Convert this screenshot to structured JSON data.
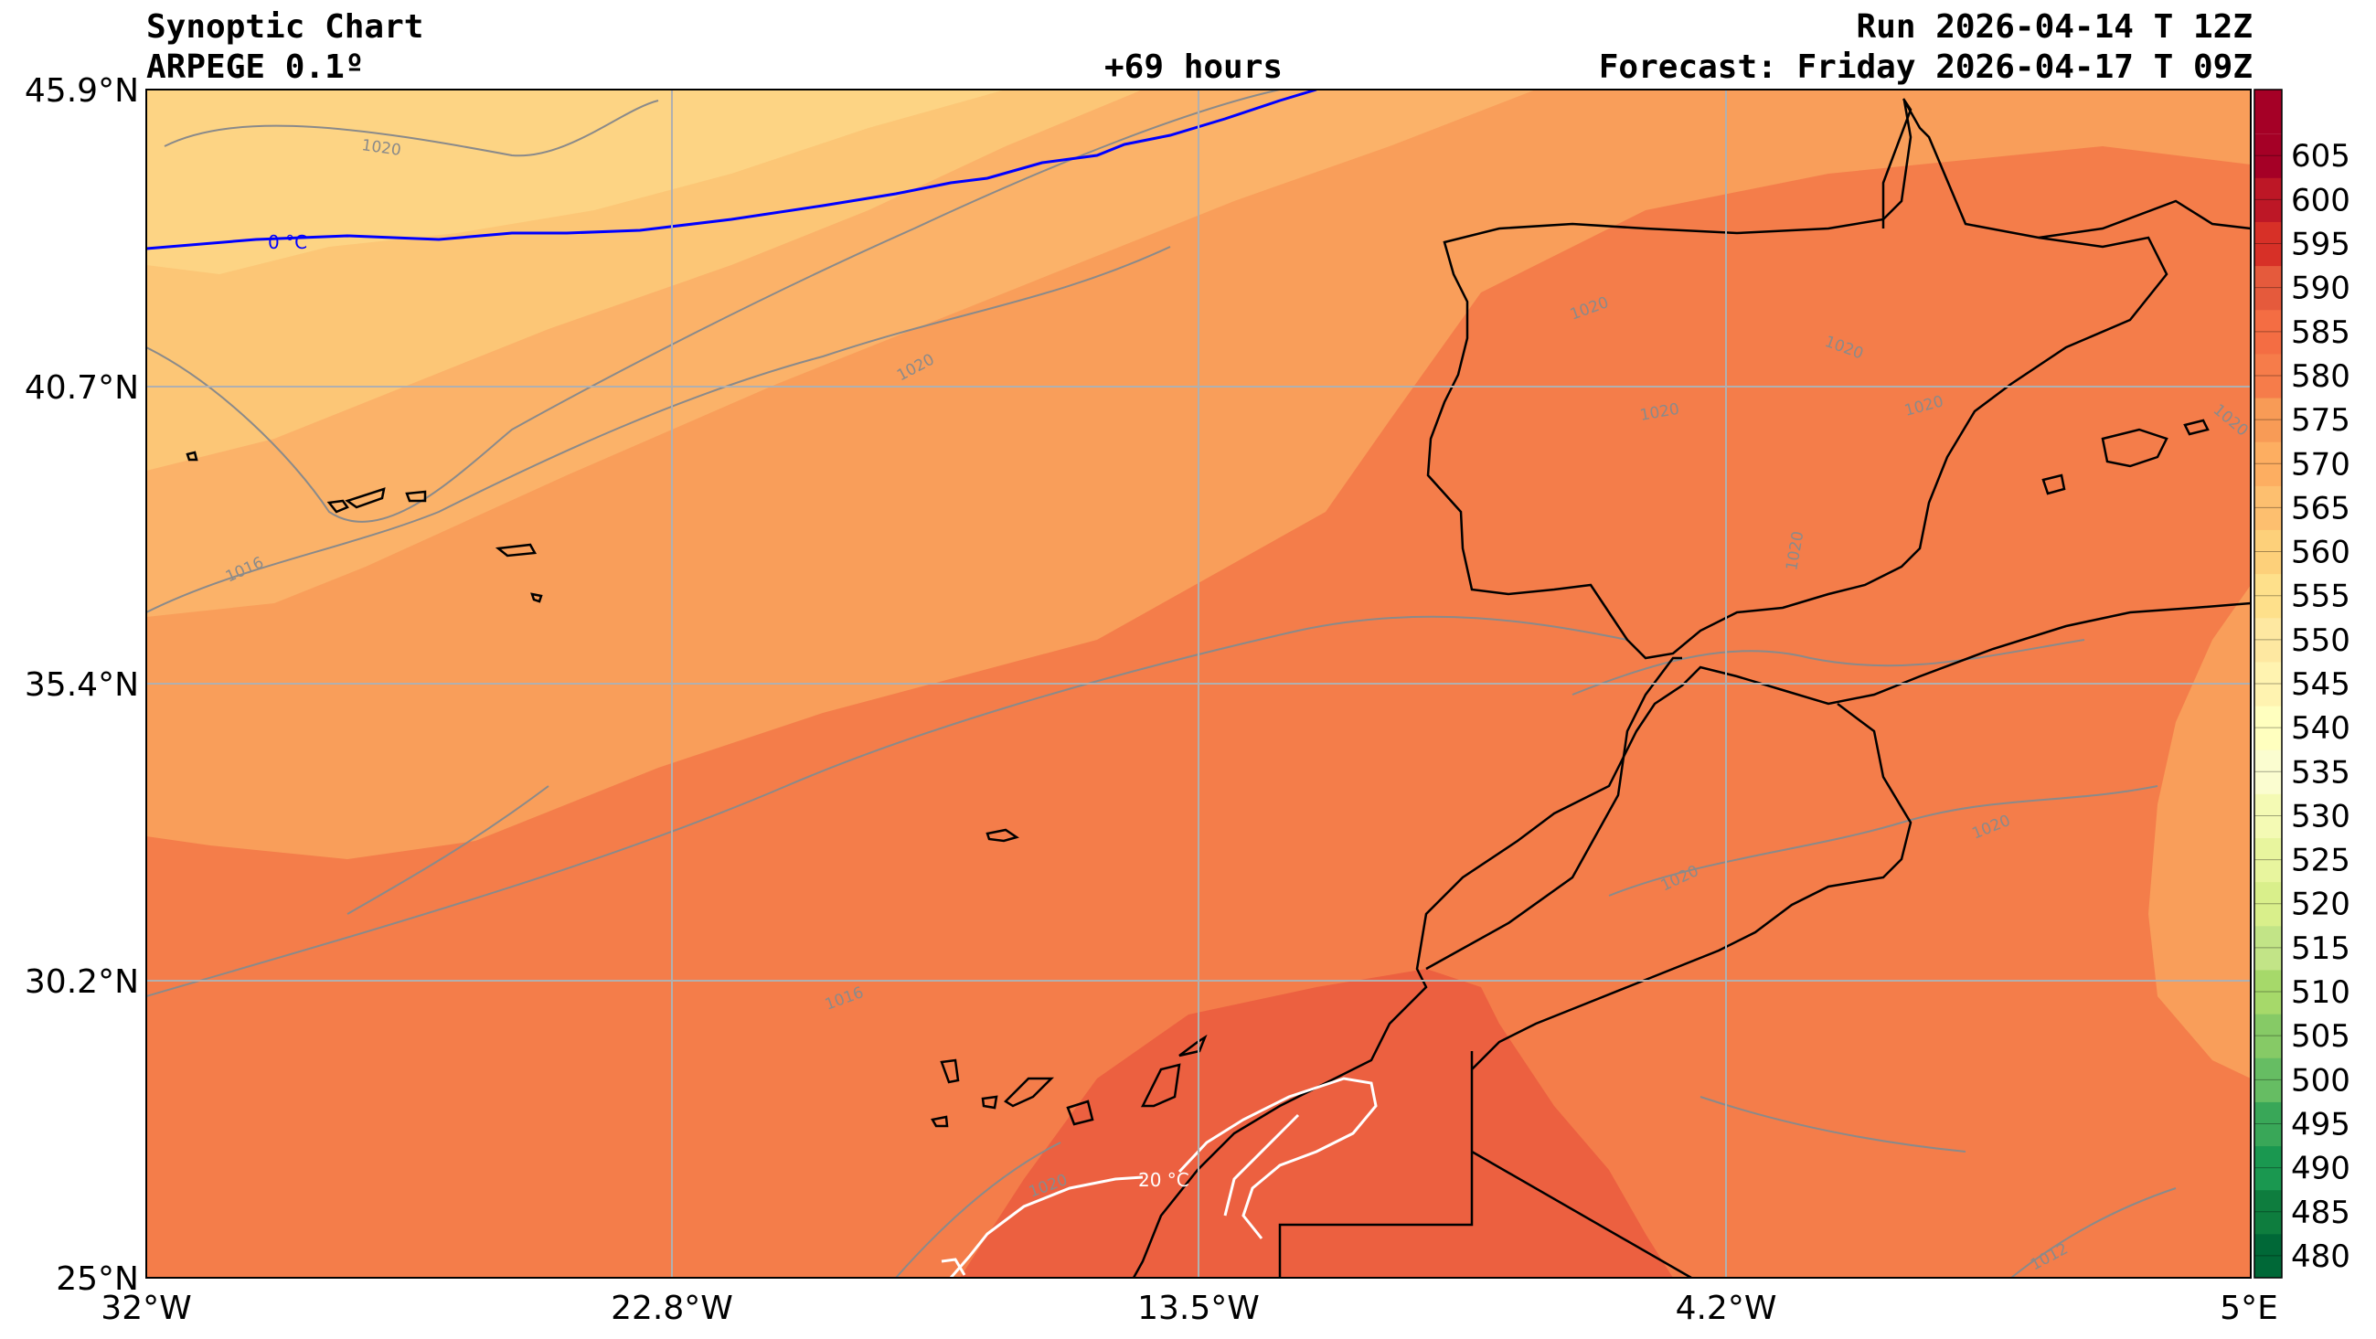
{
  "header": {
    "title": "Synoptic Chart",
    "model": "ARPEGE 0.1º",
    "lead": "+69 hours",
    "run": "Run 2026-04-14 T 12Z",
    "forecast": "Forecast: Friday 2026-04-17 T 09Z"
  },
  "axes": {
    "lat_labels": [
      "45.9°N",
      "40.7°N",
      "35.4°N",
      "30.2°N",
      "25°N"
    ],
    "lon_labels": [
      "32°W",
      "22.8°W",
      "13.5°W",
      "4.2°W",
      "5°E"
    ]
  },
  "colorbar": {
    "levels": [
      "480",
      "485",
      "490",
      "495",
      "500",
      "505",
      "510",
      "515",
      "520",
      "525",
      "530",
      "535",
      "540",
      "545",
      "550",
      "555",
      "560",
      "565",
      "570",
      "575",
      "580",
      "585",
      "590",
      "595",
      "600",
      "605"
    ],
    "colors": [
      "#006837",
      "#0e7d3e",
      "#1a9850",
      "#39a758",
      "#66bd63",
      "#86ca66",
      "#a6d96a",
      "#c2e487",
      "#d9ef8b",
      "#e8f59e",
      "#f4fab4",
      "#fbfdd0",
      "#ffffbf",
      "#fff3b0",
      "#fee8a1",
      "#fee08b",
      "#fdd07a",
      "#fdbf6f",
      "#fdae61",
      "#f89b56",
      "#f67c4a",
      "#f46d43",
      "#e55a3c",
      "#d73027",
      "#bd1726",
      "#a50026"
    ]
  },
  "map": {
    "fill_colors": {
      "z555": "#fdd484",
      "z560": "#fcc676",
      "z565": "#fbb269",
      "z570": "#f99e5a",
      "z575": "#f47d4a",
      "z580": "#ec6040",
      "coast": "#000000",
      "isotherm_0c": "#0000ff",
      "isotherm_20c": "#ffffff",
      "isobar": "#8a8a8a",
      "grid": "#b0b0b0"
    },
    "isotherm_labels": [
      "0 °C",
      "20 °C"
    ],
    "isobar_labels": [
      "1020",
      "1020",
      "1016",
      "1016",
      "1020",
      "1020",
      "1020",
      "1020",
      "1020",
      "1020",
      "1020",
      "1020",
      "1020",
      "1012"
    ]
  }
}
